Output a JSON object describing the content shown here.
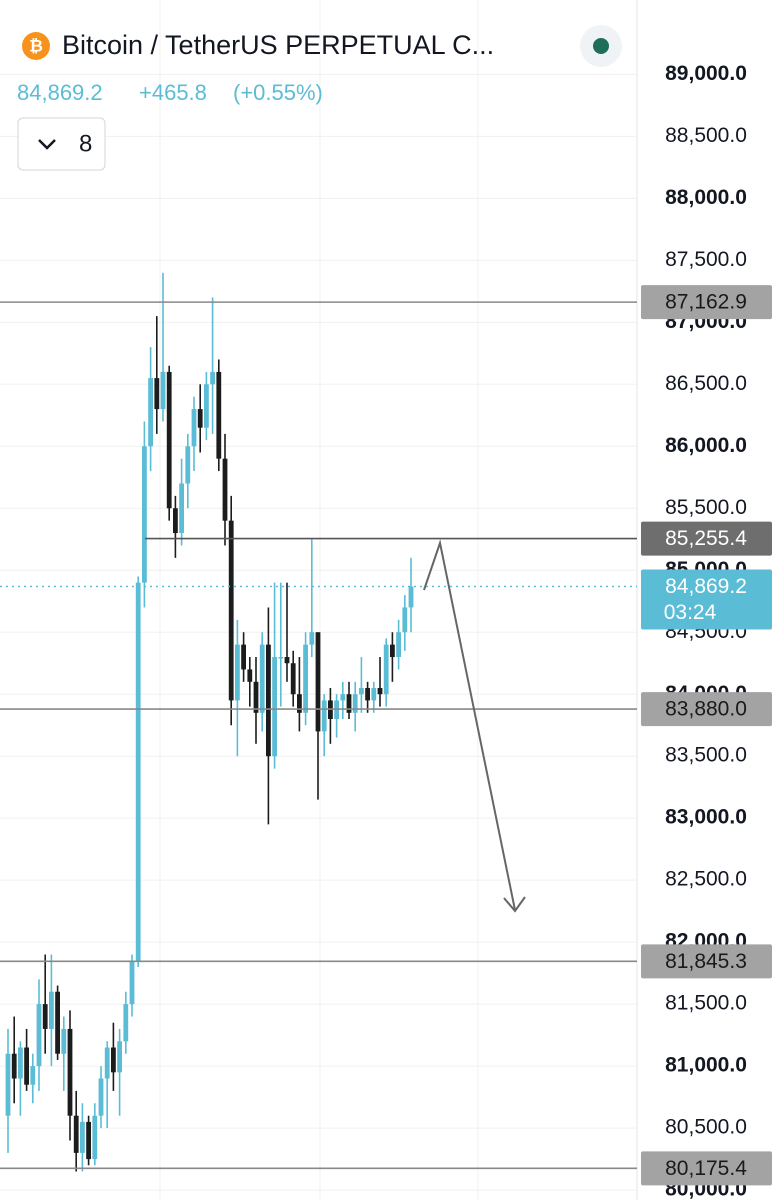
{
  "chart_data": {
    "type": "candlestick",
    "title": "Bitcoin / TetherUS PERPETUAL C...",
    "change": "+465.8",
    "change_pct": "(+0.55%)",
    "indicator_count": 8,
    "up_color": "#5bbcd6",
    "down_color": "#1c1c1c",
    "grid": true,
    "ylim": [
      79920,
      89600
    ],
    "yticks": [
      {
        "value": 89000,
        "label": "89,000.0"
      },
      {
        "value": 88500,
        "label": "88,500.0"
      },
      {
        "value": 88000,
        "label": "88,000.0"
      },
      {
        "value": 87500,
        "label": "87,500.0"
      },
      {
        "value": 87000,
        "label": "87,000.0"
      },
      {
        "value": 86500,
        "label": "86,500.0"
      },
      {
        "value": 86000,
        "label": "86,000.0"
      },
      {
        "value": 85500,
        "label": "85,500.0"
      },
      {
        "value": 85000,
        "label": "85,000.0"
      },
      {
        "value": 84500,
        "label": "84,500.0"
      },
      {
        "value": 84000,
        "label": "84,000.0"
      },
      {
        "value": 83500,
        "label": "83,500.0"
      },
      {
        "value": 83000,
        "label": "83,000.0"
      },
      {
        "value": 82500,
        "label": "82,500.0"
      },
      {
        "value": 82000,
        "label": "82,000.0"
      },
      {
        "value": 81500,
        "label": "81,500.0"
      },
      {
        "value": 81000,
        "label": "81,000.0"
      },
      {
        "value": 80500,
        "label": "80,500.0"
      },
      {
        "value": 80000,
        "label": "80,000.0"
      }
    ],
    "levels": [
      {
        "value": 87162.9,
        "label": "87,162.9"
      },
      {
        "value": 85255.4,
        "label": "85,255.4"
      },
      {
        "value": 83880.0,
        "label": "83,880.0"
      },
      {
        "value": 81845.3,
        "label": "81,845.3"
      },
      {
        "value": 80175.4,
        "label": "80,175.4"
      }
    ],
    "last": {
      "value": 84869.2,
      "label": "84,869.2"
    },
    "countdown": "03:24",
    "open": [
      80600,
      81100,
      80900,
      81150,
      80850,
      81000,
      81500,
      81300,
      81600,
      81100,
      81300,
      80600,
      80300,
      80550,
      80250,
      80600,
      80900,
      81150,
      80950,
      81200,
      81500,
      81850,
      84900,
      86000,
      86550,
      86300,
      86600,
      85500,
      85300,
      85700,
      86000,
      86300,
      86150,
      86500,
      86600,
      85900,
      85400,
      83950,
      84400,
      84200,
      84100,
      83850,
      84400,
      83500,
      84300,
      84300,
      84250,
      84000,
      83850,
      84400,
      84500,
      83700,
      83950,
      83800,
      83950,
      84000,
      83850,
      84000,
      84050,
      83950,
      84050,
      84000,
      84400,
      84300,
      84500,
      84700
    ],
    "high": [
      81300,
      81400,
      81200,
      81300,
      81100,
      81700,
      81900,
      81900,
      81650,
      81400,
      81450,
      80800,
      80700,
      80600,
      80700,
      81000,
      81200,
      81350,
      81300,
      81600,
      81900,
      84950,
      86200,
      86800,
      87050,
      87400,
      86650,
      85600,
      85900,
      86100,
      86400,
      86500,
      86600,
      87200,
      86700,
      86100,
      85600,
      84600,
      84500,
      84300,
      84300,
      84500,
      84700,
      84900,
      84900,
      84900,
      84350,
      84300,
      84500,
      85250,
      84500,
      84000,
      84050,
      84000,
      84100,
      84100,
      84100,
      84300,
      84100,
      84100,
      84300,
      84450,
      84500,
      84600,
      84800,
      85100
    ],
    "low": [
      80300,
      80700,
      80600,
      80800,
      80700,
      80800,
      81100,
      81000,
      81050,
      80800,
      80400,
      80150,
      80150,
      80200,
      80200,
      80500,
      80500,
      80800,
      80600,
      81100,
      81400,
      81800,
      84700,
      85800,
      86100,
      86200,
      85400,
      85100,
      85200,
      85500,
      85800,
      85950,
      86050,
      86100,
      85800,
      85200,
      83750,
      83500,
      84100,
      83900,
      83600,
      83700,
      82950,
      83400,
      83900,
      84100,
      83900,
      83700,
      83750,
      84300,
      83150,
      83500,
      83600,
      83650,
      83800,
      83800,
      83700,
      83850,
      83850,
      83850,
      83900,
      83900,
      84100,
      84200,
      84350,
      84500
    ],
    "close": [
      81100,
      80900,
      81150,
      80850,
      81000,
      81500,
      81300,
      81600,
      81100,
      81300,
      80600,
      80300,
      80550,
      80250,
      80600,
      80900,
      81150,
      80950,
      81200,
      81500,
      81850,
      84900,
      86000,
      86550,
      86300,
      86600,
      85500,
      85300,
      85700,
      86000,
      86300,
      86150,
      86500,
      86600,
      85900,
      85400,
      83950,
      84400,
      84200,
      84100,
      83850,
      84400,
      83500,
      84300,
      84300,
      84250,
      84000,
      83850,
      84400,
      84500,
      83700,
      83950,
      83800,
      83950,
      84000,
      83850,
      84000,
      84050,
      83950,
      84050,
      84000,
      84400,
      84300,
      84500,
      84700,
      84869.2
    ]
  }
}
